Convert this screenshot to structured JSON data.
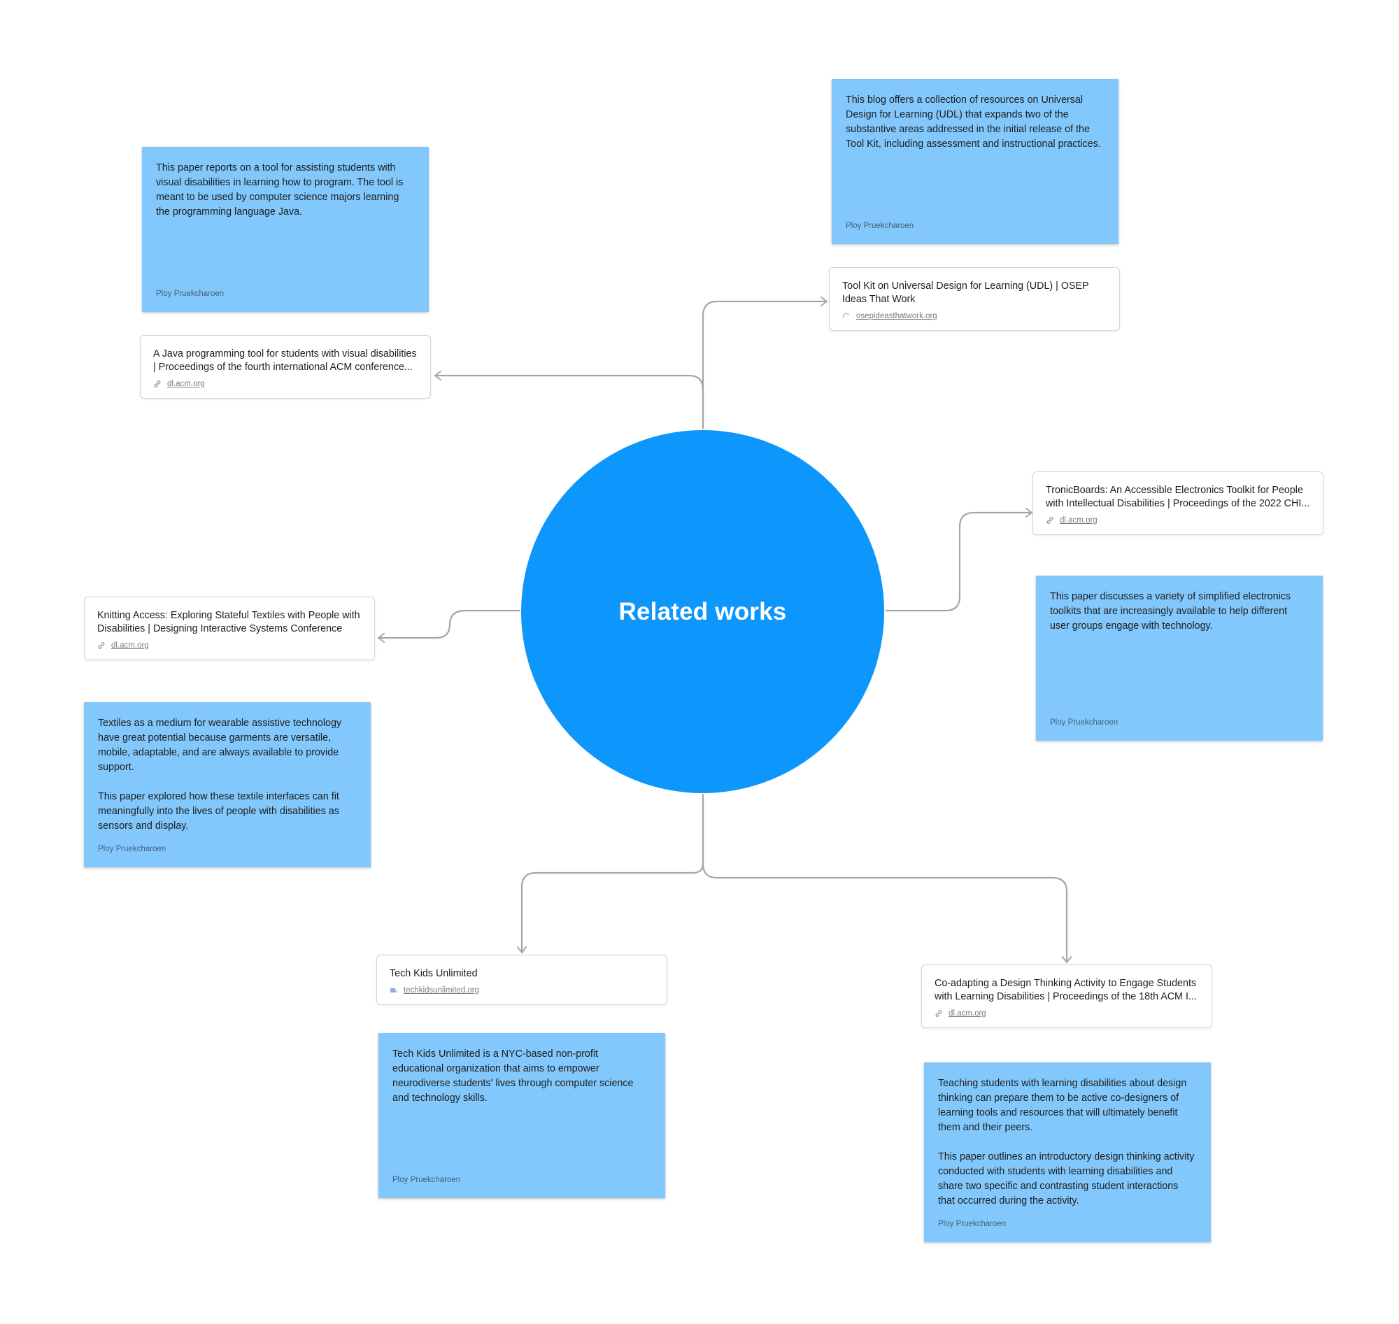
{
  "hub": {
    "title": "Related works"
  },
  "links": [
    {
      "title": "A Java programming tool for students with visual disabilities | Proceedings of the fourth international ACM conference...",
      "domain": "dl.acm.org",
      "icon": "link-icon"
    },
    {
      "title": "Tool Kit on Universal Design for Learning (UDL) | OSEP Ideas That Work",
      "domain": "osepideasthatwork.org",
      "icon": "site-favicon-icon"
    },
    {
      "title": "TronicBoards: An Accessible Electronics Toolkit for People with Intellectual Disabilities | Proceedings of the 2022 CHI...",
      "domain": "dl.acm.org",
      "icon": "link-icon"
    },
    {
      "title": "Knitting Access: Exploring Stateful Textiles with People with Disabilities | Designing Interactive Systems Conference",
      "domain": "dl.acm.org",
      "icon": "link-icon"
    },
    {
      "title": "Tech Kids Unlimited",
      "domain": "techkidsunlimited.org",
      "icon": "site-favicon-icon"
    },
    {
      "title": "Co-adapting a Design Thinking Activity to Engage Students with Learning Disabilities | Proceedings of the 18th ACM I...",
      "domain": "dl.acm.org",
      "icon": "link-icon"
    }
  ],
  "stickies": [
    {
      "text": "This paper reports on a tool for assisting students with visual disabilities in learning how to program. The tool is meant to be used by computer science majors learning the programming language Java.",
      "author": "Ploy Pruekcharoen"
    },
    {
      "text": "This blog offers a collection of resources on Universal Design for Learning (UDL) that expands two of the substantive areas addressed in the initial release of the Tool Kit, including assessment and instructional practices.",
      "author": "Ploy Pruekcharoen"
    },
    {
      "text": "This paper discusses a variety of simplified electronics toolkits that are increasingly available to help different user groups engage with technology.",
      "author": "Ploy Pruekcharoen"
    },
    {
      "text": "Textiles as a medium for wearable assistive technology have great potential because garments are versatile, mobile, adaptable, and are always available to provide support.\n\nThis paper explored how these textile interfaces can fit meaningfully into the lives of people with disabilities as sensors and display.",
      "author": "Ploy Pruekcharoen"
    },
    {
      "text": "Tech Kids Unlimited is a NYC-based non-profit educational organization that aims to empower neurodiverse students' lives through computer science and technology skills.",
      "author": "Ploy Pruekcharoen"
    },
    {
      "text": "Teaching students with learning disabilities about design thinking can prepare them to be active co-designers of learning tools and resources that will ultimately benefit them and their peers.\n\nThis paper outlines an introductory design thinking activity conducted with students with learning disabilities and share two specific and contrasting student interactions that occurred during the activity.",
      "author": "Ploy Pruekcharoen"
    }
  ],
  "colors": {
    "hub": "#0d96fb",
    "sticky": "#82c8fc",
    "connector": "#a6a6a6"
  }
}
